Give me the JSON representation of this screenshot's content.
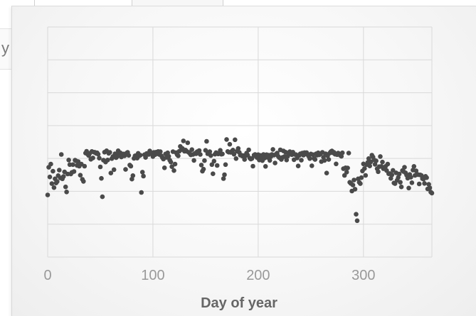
{
  "background": {
    "side_label": "y c"
  },
  "chart_data": {
    "type": "scatter",
    "title": "",
    "xlabel": "Day of year",
    "ylabel": "",
    "xlim": [
      0,
      365
    ],
    "x_ticks": [
      0,
      100,
      200,
      300
    ],
    "y_gridlines": 7,
    "grid": true,
    "marker_color": "#4a4a4a",
    "gridline_color": "#d9d9d9",
    "points": [
      [
        0,
        0.27
      ],
      [
        1,
        0.39
      ],
      [
        2,
        0.348
      ],
      [
        3,
        0.404
      ],
      [
        4,
        0.319
      ],
      [
        5,
        0.373
      ],
      [
        6,
        0.302
      ],
      [
        7,
        0.34
      ],
      [
        8,
        0.322
      ],
      [
        9,
        0.328
      ],
      [
        10,
        0.354
      ],
      [
        11,
        0.378
      ],
      [
        12,
        0.344
      ],
      [
        13,
        0.446
      ],
      [
        14,
        0.34
      ],
      [
        15,
        0.35
      ],
      [
        16,
        0.37
      ],
      [
        17,
        0.305
      ],
      [
        18,
        0.283
      ],
      [
        19,
        0.361
      ],
      [
        20,
        0.422
      ],
      [
        21,
        0.402
      ],
      [
        22,
        0.361
      ],
      [
        23,
        0.368
      ],
      [
        24,
        0.402
      ],
      [
        25,
        0.372
      ],
      [
        26,
        0.421
      ],
      [
        27,
        0.418
      ],
      [
        28,
        0.398
      ],
      [
        29,
        0.415
      ],
      [
        30,
        0.395
      ],
      [
        31,
        0.356
      ],
      [
        32,
        0.404
      ],
      [
        33,
        0.338
      ],
      [
        34,
        0.329
      ],
      [
        35,
        0.395
      ],
      [
        36,
        0.452
      ],
      [
        37,
        0.46
      ],
      [
        38,
        0.447
      ],
      [
        39,
        0.441
      ],
      [
        40,
        0.451
      ],
      [
        41,
        0.425
      ],
      [
        42,
        0.459
      ],
      [
        43,
        0.431
      ],
      [
        44,
        0.456
      ],
      [
        45,
        0.455
      ],
      [
        46,
        0.451
      ],
      [
        47,
        0.453
      ],
      [
        48,
        0.447
      ],
      [
        49,
        0.43
      ],
      [
        50,
        0.392
      ],
      [
        51,
        0.342
      ],
      [
        52,
        0.262
      ],
      [
        53,
        0.421
      ],
      [
        54,
        0.456
      ],
      [
        55,
        0.413
      ],
      [
        56,
        0.462
      ],
      [
        57,
        0.422
      ],
      [
        58,
        0.451
      ],
      [
        59,
        0.455
      ],
      [
        60,
        0.365
      ],
      [
        61,
        0.428
      ],
      [
        62,
        0.437
      ],
      [
        63,
        0.38
      ],
      [
        64,
        0.449
      ],
      [
        65,
        0.432
      ],
      [
        66,
        0.437
      ],
      [
        67,
        0.462
      ],
      [
        68,
        0.45
      ],
      [
        69,
        0.453
      ],
      [
        70,
        0.435
      ],
      [
        71,
        0.447
      ],
      [
        72,
        0.448
      ],
      [
        73,
        0.44
      ],
      [
        74,
        0.381
      ],
      [
        75,
        0.452
      ],
      [
        76,
        0.455
      ],
      [
        77,
        0.442
      ],
      [
        78,
        0.4
      ],
      [
        79,
        0.395
      ],
      [
        80,
        0.339
      ],
      [
        81,
        0.354
      ],
      [
        82,
        0.429
      ],
      [
        83,
        0.44
      ],
      [
        84,
        0.441
      ],
      [
        85,
        0.43
      ],
      [
        86,
        0.451
      ],
      [
        87,
        0.44
      ],
      [
        88,
        0.443
      ],
      [
        89,
        0.281
      ],
      [
        90,
        0.369
      ],
      [
        91,
        0.352
      ],
      [
        92,
        0.445
      ],
      [
        93,
        0.433
      ],
      [
        94,
        0.45
      ],
      [
        95,
        0.448
      ],
      [
        96,
        0.446
      ],
      [
        97,
        0.461
      ],
      [
        98,
        0.45
      ],
      [
        99,
        0.452
      ],
      [
        100,
        0.437
      ],
      [
        101,
        0.455
      ],
      [
        102,
        0.445
      ],
      [
        103,
        0.456
      ],
      [
        104,
        0.449
      ],
      [
        105,
        0.459
      ],
      [
        106,
        0.446
      ],
      [
        107,
        0.458
      ],
      [
        108,
        0.44
      ],
      [
        109,
        0.432
      ],
      [
        110,
        0.426
      ],
      [
        111,
        0.388
      ],
      [
        112,
        0.448
      ],
      [
        113,
        0.433
      ],
      [
        114,
        0.453
      ],
      [
        115,
        0.438
      ],
      [
        116,
        0.421
      ],
      [
        117,
        0.413
      ],
      [
        118,
        0.393
      ],
      [
        119,
        0.458
      ],
      [
        120,
        0.376
      ],
      [
        121,
        0.404
      ],
      [
        122,
        0.454
      ],
      [
        123,
        0.445
      ],
      [
        124,
        0.44
      ],
      [
        125,
        0.46
      ],
      [
        126,
        0.481
      ],
      [
        127,
        0.467
      ],
      [
        128,
        0.472
      ],
      [
        129,
        0.505
      ],
      [
        130,
        0.46
      ],
      [
        131,
        0.465
      ],
      [
        132,
        0.46
      ],
      [
        133,
        0.497
      ],
      [
        134,
        0.455
      ],
      [
        135,
        0.451
      ],
      [
        136,
        0.444
      ],
      [
        137,
        0.467
      ],
      [
        138,
        0.446
      ],
      [
        139,
        0.42
      ],
      [
        140,
        0.451
      ],
      [
        141,
        0.449
      ],
      [
        142,
        0.458
      ],
      [
        143,
        0.455
      ],
      [
        144,
        0.463
      ],
      [
        145,
        0.446
      ],
      [
        146,
        0.4
      ],
      [
        147,
        0.373
      ],
      [
        148,
        0.382
      ],
      [
        149,
        0.419
      ],
      [
        150,
        0.464
      ],
      [
        151,
        0.503
      ],
      [
        152,
        0.449
      ],
      [
        153,
        0.453
      ],
      [
        154,
        0.458
      ],
      [
        155,
        0.441
      ],
      [
        156,
        0.402
      ],
      [
        157,
        0.362
      ],
      [
        158,
        0.417
      ],
      [
        159,
        0.447
      ],
      [
        160,
        0.454
      ],
      [
        161,
        0.398
      ],
      [
        162,
        0.448
      ],
      [
        163,
        0.452
      ],
      [
        164,
        0.464
      ],
      [
        165,
        0.447
      ],
      [
        166,
        0.448
      ],
      [
        167,
        0.341
      ],
      [
        168,
        0.358
      ],
      [
        169,
        0.402
      ],
      [
        170,
        0.511
      ],
      [
        171,
        0.459
      ],
      [
        172,
        0.456
      ],
      [
        173,
        0.49
      ],
      [
        174,
        0.455
      ],
      [
        175,
        0.46
      ],
      [
        176,
        0.465
      ],
      [
        177,
        0.447
      ],
      [
        178,
        0.51
      ],
      [
        179,
        0.428
      ],
      [
        180,
        0.46
      ],
      [
        181,
        0.472
      ],
      [
        182,
        0.455
      ],
      [
        183,
        0.443
      ],
      [
        184,
        0.443
      ],
      [
        185,
        0.439
      ],
      [
        186,
        0.441
      ],
      [
        187,
        0.424
      ],
      [
        188,
        0.44
      ],
      [
        189,
        0.452
      ],
      [
        190,
        0.443
      ],
      [
        191,
        0.466
      ],
      [
        192,
        0.43
      ],
      [
        193,
        0.426
      ],
      [
        194,
        0.428
      ],
      [
        195,
        0.395
      ],
      [
        196,
        0.443
      ],
      [
        197,
        0.446
      ],
      [
        198,
        0.437
      ],
      [
        199,
        0.432
      ],
      [
        200,
        0.445
      ],
      [
        201,
        0.422
      ],
      [
        202,
        0.442
      ],
      [
        203,
        0.437
      ],
      [
        204,
        0.419
      ],
      [
        205,
        0.446
      ],
      [
        206,
        0.43
      ],
      [
        207,
        0.394
      ],
      [
        208,
        0.445
      ],
      [
        209,
        0.433
      ],
      [
        210,
        0.443
      ],
      [
        211,
        0.42
      ],
      [
        212,
        0.436
      ],
      [
        213,
        0.446
      ],
      [
        214,
        0.468
      ],
      [
        215,
        0.443
      ],
      [
        216,
        0.409
      ],
      [
        217,
        0.447
      ],
      [
        218,
        0.452
      ],
      [
        219,
        0.438
      ],
      [
        220,
        0.432
      ],
      [
        221,
        0.466
      ],
      [
        222,
        0.424
      ],
      [
        223,
        0.433
      ],
      [
        224,
        0.461
      ],
      [
        225,
        0.437
      ],
      [
        226,
        0.456
      ],
      [
        227,
        0.422
      ],
      [
        228,
        0.438
      ],
      [
        229,
        0.451
      ],
      [
        230,
        0.458
      ],
      [
        231,
        0.452
      ],
      [
        232,
        0.445
      ],
      [
        233,
        0.456
      ],
      [
        234,
        0.423
      ],
      [
        235,
        0.446
      ],
      [
        236,
        0.445
      ],
      [
        237,
        0.431
      ],
      [
        238,
        0.396
      ],
      [
        239,
        0.442
      ],
      [
        240,
        0.449
      ],
      [
        241,
        0.421
      ],
      [
        242,
        0.452
      ],
      [
        243,
        0.443
      ],
      [
        244,
        0.454
      ],
      [
        245,
        0.448
      ],
      [
        246,
        0.454
      ],
      [
        247,
        0.445
      ],
      [
        248,
        0.438
      ],
      [
        249,
        0.428
      ],
      [
        250,
        0.448
      ],
      [
        251,
        0.397
      ],
      [
        252,
        0.445
      ],
      [
        253,
        0.429
      ],
      [
        254,
        0.424
      ],
      [
        255,
        0.449
      ],
      [
        256,
        0.443
      ],
      [
        257,
        0.453
      ],
      [
        258,
        0.444
      ],
      [
        259,
        0.448
      ],
      [
        260,
        0.415
      ],
      [
        261,
        0.455
      ],
      [
        262,
        0.434
      ],
      [
        263,
        0.42
      ],
      [
        264,
        0.449
      ],
      [
        265,
        0.365
      ],
      [
        266,
        0.44
      ],
      [
        267,
        0.424
      ],
      [
        268,
        0.452
      ],
      [
        269,
        0.458
      ],
      [
        270,
        0.461
      ],
      [
        271,
        0.453
      ],
      [
        272,
        0.455
      ],
      [
        273,
        0.447
      ],
      [
        274,
        0.405
      ],
      [
        275,
        0.445
      ],
      [
        276,
        0.452
      ],
      [
        277,
        0.448
      ],
      [
        278,
        0.442
      ],
      [
        279,
        0.438
      ],
      [
        280,
        0.453
      ],
      [
        281,
        0.384
      ],
      [
        282,
        0.355
      ],
      [
        283,
        0.388
      ],
      [
        284,
        0.369
      ],
      [
        285,
        0.387
      ],
      [
        286,
        0.452
      ],
      [
        287,
        0.325
      ],
      [
        288,
        0.32
      ],
      [
        289,
        0.287
      ],
      [
        290,
        0.313
      ],
      [
        291,
        0.335
      ],
      [
        292,
        0.295
      ],
      [
        293,
        0.186
      ],
      [
        294,
        0.158
      ],
      [
        295,
        0.34
      ],
      [
        296,
        0.325
      ],
      [
        297,
        0.319
      ],
      [
        298,
        0.345
      ],
      [
        299,
        0.374
      ],
      [
        300,
        0.405
      ],
      [
        301,
        0.385
      ],
      [
        302,
        0.355
      ],
      [
        303,
        0.402
      ],
      [
        304,
        0.411
      ],
      [
        305,
        0.428
      ],
      [
        306,
        0.396
      ],
      [
        307,
        0.414
      ],
      [
        308,
        0.443
      ],
      [
        309,
        0.435
      ],
      [
        310,
        0.423
      ],
      [
        311,
        0.403
      ],
      [
        312,
        0.418
      ],
      [
        313,
        0.384
      ],
      [
        314,
        0.371
      ],
      [
        315,
        0.393
      ],
      [
        316,
        0.437
      ],
      [
        317,
        0.394
      ],
      [
        318,
        0.413
      ],
      [
        319,
        0.384
      ],
      [
        320,
        0.388
      ],
      [
        321,
        0.394
      ],
      [
        322,
        0.376
      ],
      [
        323,
        0.404
      ],
      [
        324,
        0.362
      ],
      [
        325,
        0.363
      ],
      [
        326,
        0.342
      ],
      [
        327,
        0.357
      ],
      [
        328,
        0.377
      ],
      [
        329,
        0.322
      ],
      [
        330,
        0.319
      ],
      [
        331,
        0.366
      ],
      [
        332,
        0.334
      ],
      [
        333,
        0.346
      ],
      [
        334,
        0.361
      ],
      [
        335,
        0.325
      ],
      [
        336,
        0.305
      ],
      [
        337,
        0.376
      ],
      [
        338,
        0.372
      ],
      [
        339,
        0.39
      ],
      [
        340,
        0.366
      ],
      [
        341,
        0.356
      ],
      [
        342,
        0.343
      ],
      [
        343,
        0.3
      ],
      [
        344,
        0.359
      ],
      [
        345,
        0.347
      ],
      [
        346,
        0.323
      ],
      [
        347,
        0.378
      ],
      [
        348,
        0.394
      ],
      [
        349,
        0.355
      ],
      [
        350,
        0.375
      ],
      [
        351,
        0.36
      ],
      [
        352,
        0.358
      ],
      [
        353,
        0.318
      ],
      [
        354,
        0.357
      ],
      [
        355,
        0.355
      ],
      [
        356,
        0.341
      ],
      [
        357,
        0.339
      ],
      [
        358,
        0.32
      ],
      [
        359,
        0.351
      ],
      [
        360,
        0.345
      ],
      [
        361,
        0.296
      ],
      [
        362,
        0.316
      ],
      [
        363,
        0.301
      ],
      [
        364,
        0.282
      ],
      [
        365,
        0.278
      ]
    ]
  }
}
